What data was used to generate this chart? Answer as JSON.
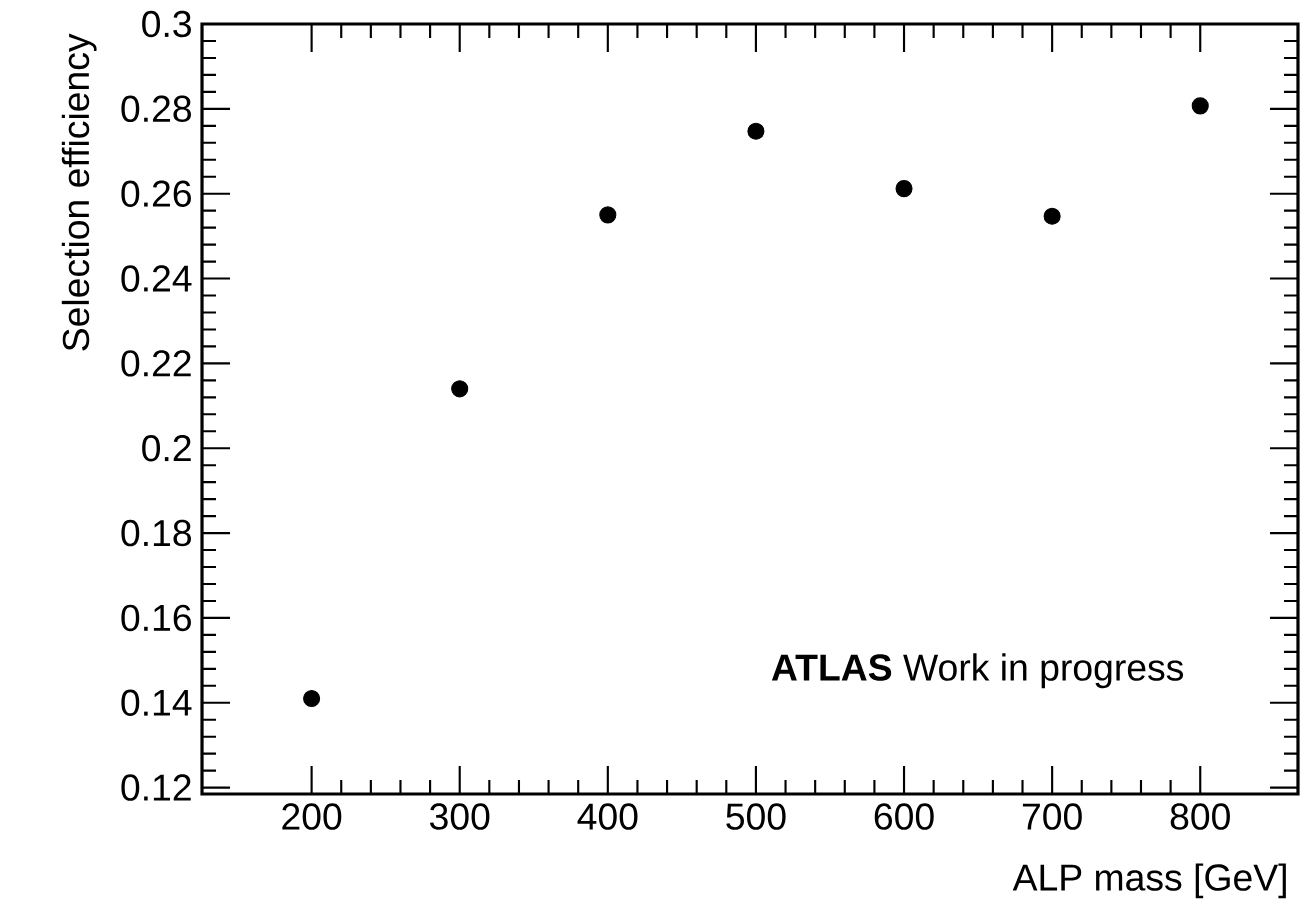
{
  "chart_data": {
    "type": "scatter",
    "xlabel": "ALP mass [GeV]",
    "ylabel": "Selection efficiency",
    "x": [
      200,
      300,
      400,
      500,
      600,
      700,
      800
    ],
    "values": [
      0.141,
      0.214,
      0.255,
      0.2747,
      0.2612,
      0.2547,
      0.2807
    ],
    "color": "#000000",
    "marker": "circle",
    "xlim": [
      126,
      866
    ],
    "ylim": [
      0.1185,
      0.3
    ],
    "xticks": [
      200,
      300,
      400,
      500,
      600,
      700,
      800
    ],
    "yticks": [
      0.12,
      0.14,
      0.16,
      0.18,
      0.2,
      0.22,
      0.24,
      0.26,
      0.28,
      0.3
    ],
    "grid": false,
    "annotations": [
      "**ATLAS** Work in progress"
    ]
  }
}
